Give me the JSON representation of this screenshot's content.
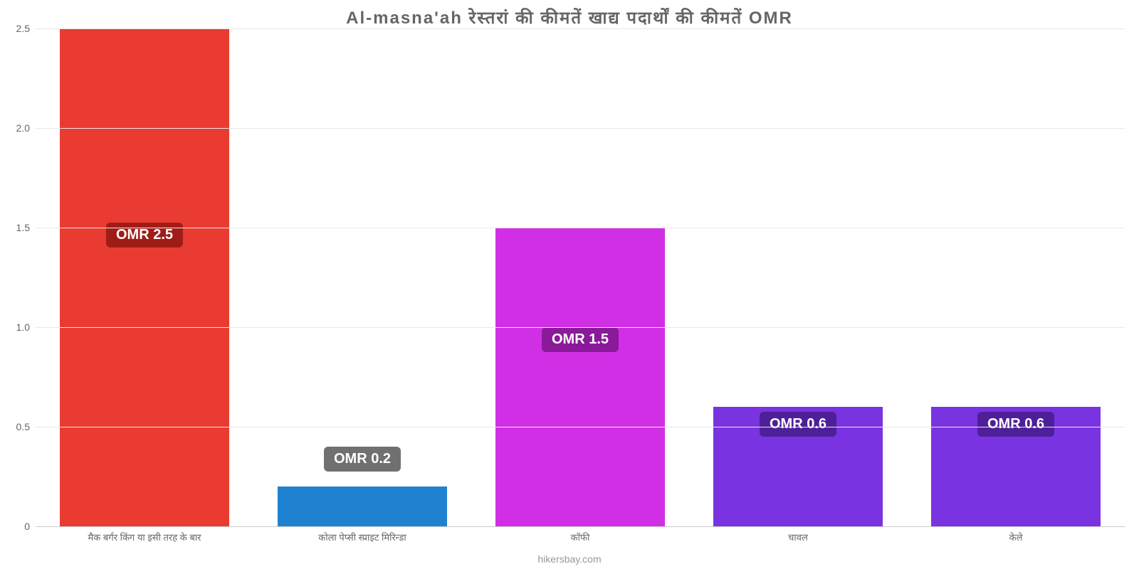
{
  "chart": {
    "type": "bar",
    "title": "Al-masna'ah रेस्तरां   की   कीमतें   खाद्य   पदार्थों   की   कीमतें   OMR",
    "title_color": "#666666",
    "title_fontsize": 24,
    "background_color": "#ffffff",
    "grid_color": "#e8e8e8",
    "axis_line_color": "#cccccc",
    "ylim": [
      0,
      2.5
    ],
    "yticks": [
      0,
      0.5,
      1.0,
      1.5,
      2.0,
      2.5
    ],
    "ytick_labels": [
      "0",
      "0.5",
      "1.0",
      "1.5",
      "2.0",
      "2.5"
    ],
    "tick_fontsize": 14,
    "tick_color": "#666666",
    "bar_width_pct": 78,
    "value_label_fontsize": 20,
    "x_label_fontsize": 13,
    "source_text": "hikersbay.com",
    "source_color": "#999999",
    "bars": [
      {
        "category": "मैक बर्गर किंग या इसी तरह के बार",
        "value": 2.5,
        "value_label": "OMR 2.5",
        "bar_color": "#ea3b32",
        "badge_bg": "#a01d17",
        "badge_text_color": "#ffffff",
        "badge_y_from_bottom_pct": 56
      },
      {
        "category": "कोला पेप्सी स्प्राइट मिरिन्डा",
        "value": 0.2,
        "value_label": "OMR 0.2",
        "bar_color": "#1f82d1",
        "badge_bg": "#707070",
        "badge_text_color": "#ffffff",
        "badge_y_from_bottom_pct": 11
      },
      {
        "category": "कॉफी",
        "value": 1.5,
        "value_label": "OMR 1.5",
        "bar_color": "#d12fe5",
        "badge_bg": "#8a1a99",
        "badge_text_color": "#ffffff",
        "badge_y_from_bottom_pct": 35
      },
      {
        "category": "चावल",
        "value": 0.6,
        "value_label": "OMR 0.6",
        "bar_color": "#7a33e0",
        "badge_bg": "#4d1f99",
        "badge_text_color": "#ffffff",
        "badge_y_from_bottom_pct": 18
      },
      {
        "category": "केले",
        "value": 0.6,
        "value_label": "OMR 0.6",
        "bar_color": "#7a33e0",
        "badge_bg": "#4d1f99",
        "badge_text_color": "#ffffff",
        "badge_y_from_bottom_pct": 18
      }
    ]
  }
}
